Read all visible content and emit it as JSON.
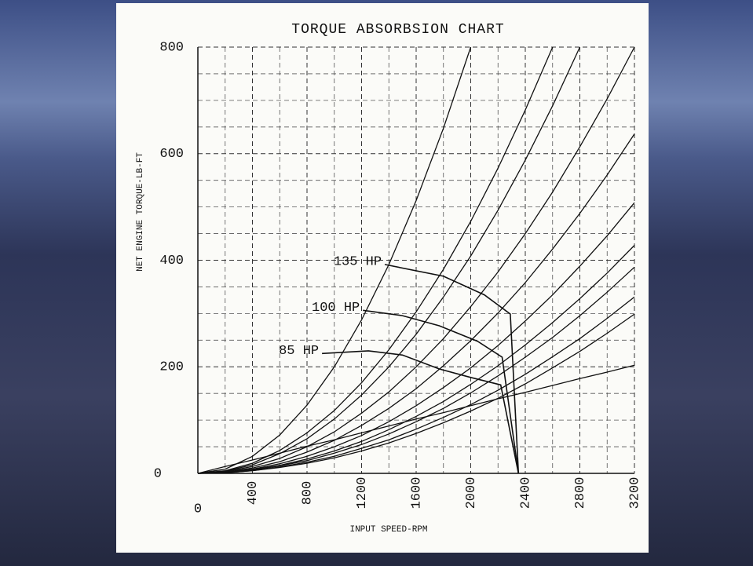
{
  "chart_data": {
    "type": "line",
    "title": "TORQUE ABSORBSION CHART",
    "y_label": "NET ENGINE TORQUE-LB-FT",
    "x_label": "INPUT SPEED-RPM",
    "xlim": [
      0,
      3200
    ],
    "xticks": [
      0,
      400,
      800,
      1200,
      1600,
      2000,
      2400,
      2800,
      3200
    ],
    "ylim": [
      0,
      800
    ],
    "yticks": [
      0,
      200,
      400,
      600,
      800
    ],
    "grid": true,
    "color": "#111111",
    "x": [
      0,
      200,
      400,
      600,
      800,
      1000,
      1200,
      1400,
      1600,
      1800,
      2000,
      2200,
      2400,
      2600,
      2800,
      3000,
      3200
    ],
    "series": [
      {
        "values": [
          0,
          8,
          32,
          72,
          128,
          200,
          288,
          392,
          512,
          648,
          800,
          null,
          null,
          null,
          null,
          null,
          null
        ]
      },
      {
        "values": [
          0,
          5,
          19,
          43,
          76,
          118,
          170,
          232,
          303,
          383,
          473,
          573,
          682,
          800,
          null,
          null,
          null
        ]
      },
      {
        "values": [
          0,
          4,
          16,
          37,
          65,
          102,
          147,
          200,
          261,
          331,
          408,
          494,
          588,
          690,
          800,
          null,
          null
        ]
      },
      {
        "values": [
          0,
          3,
          13,
          28,
          50,
          78,
          113,
          153,
          200,
          253,
          313,
          378,
          450,
          528,
          613,
          703,
          800
        ]
      },
      {
        "values": [
          0,
          2,
          10,
          22,
          40,
          62,
          90,
          122,
          159,
          202,
          249,
          301,
          358,
          421,
          488,
          560,
          637
        ]
      },
      {
        "values": [
          0,
          2,
          8,
          18,
          32,
          50,
          71,
          97,
          127,
          161,
          198,
          240,
          286,
          335,
          389,
          446,
          508
        ]
      },
      {
        "values": [
          0,
          2,
          7,
          15,
          27,
          42,
          60,
          82,
          107,
          135,
          167,
          202,
          241,
          283,
          328,
          376,
          428
        ]
      },
      {
        "values": [
          0,
          2,
          6,
          14,
          24,
          38,
          54,
          74,
          97,
          122,
          151,
          183,
          218,
          255,
          296,
          340,
          387
        ]
      },
      {
        "values": [
          0,
          1,
          5,
          12,
          21,
          32,
          47,
          63,
          83,
          105,
          129,
          156,
          186,
          219,
          253,
          291,
          331
        ]
      },
      {
        "values": [
          0,
          1,
          5,
          11,
          19,
          29,
          42,
          57,
          75,
          95,
          117,
          141,
          168,
          198,
          229,
          263,
          299
        ]
      },
      {
        "values": [
          0,
          13,
          25,
          38,
          51,
          63,
          76,
          89,
          102,
          114,
          127,
          140,
          152,
          165,
          178,
          190,
          203
        ]
      }
    ],
    "engine_curves": [
      {
        "name": "135 HP",
        "x": [
          1370,
          1800,
          2100,
          2290,
          2350
        ],
        "values": [
          392,
          370,
          335,
          299,
          0
        ]
      },
      {
        "name": "100 HP",
        "x": [
          1210,
          1500,
          1770,
          2050,
          2230,
          2350
        ],
        "values": [
          306,
          296,
          277,
          248,
          218,
          0
        ]
      },
      {
        "name": "85 HP",
        "x": [
          910,
          1250,
          1500,
          1770,
          2000,
          2220,
          2350
        ],
        "values": [
          225,
          230,
          222,
          196,
          180,
          166,
          0
        ]
      }
    ]
  }
}
